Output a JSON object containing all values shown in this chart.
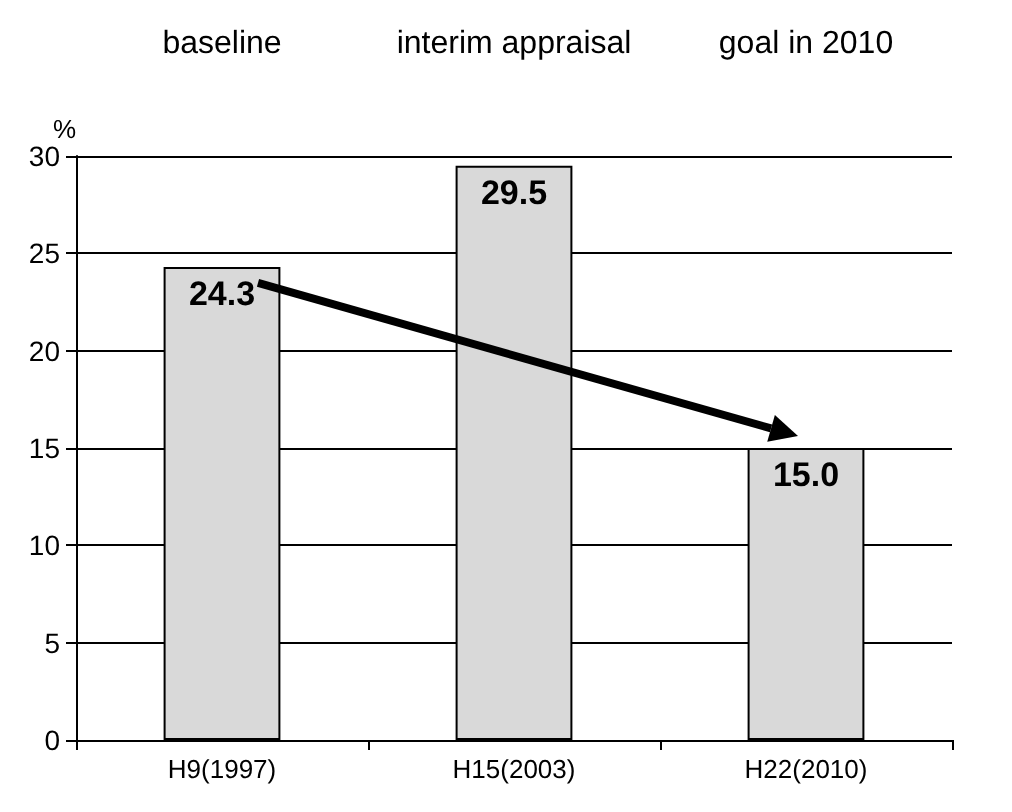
{
  "chart_data": {
    "type": "bar",
    "categories": [
      "H9(1997)",
      "H15(2003)",
      "H22(2010)"
    ],
    "values": [
      24.3,
      29.5,
      15.0
    ],
    "value_labels": [
      "24.3",
      "29.5",
      "15.0"
    ],
    "color": "#d9d9d9",
    "ylabel": "%",
    "ylim": [
      0,
      30
    ],
    "yticks": [
      0,
      5,
      10,
      15,
      20,
      25,
      30
    ],
    "grid": "y",
    "annotations": [
      "baseline",
      "interim appraisal",
      "goal in 2010"
    ]
  }
}
